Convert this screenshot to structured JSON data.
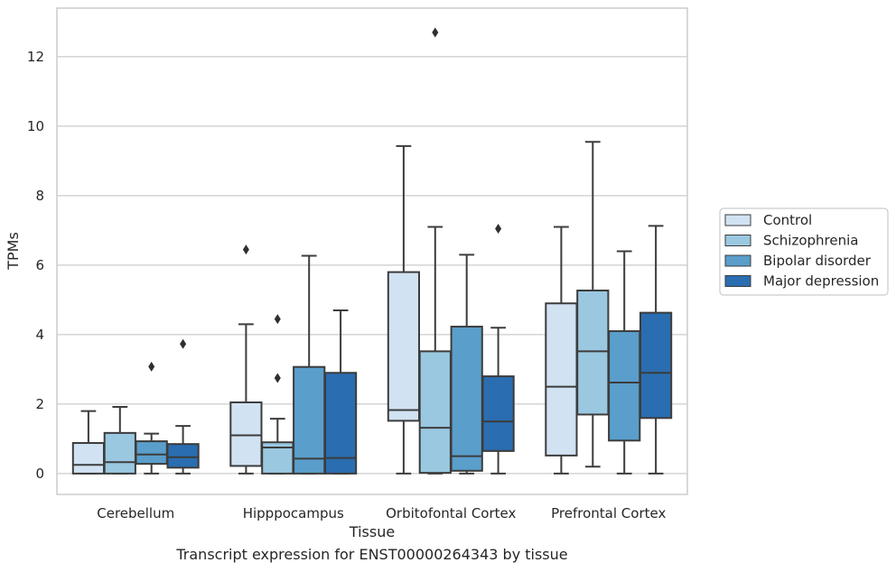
{
  "caption": "Transcript expression for ENST00000264343 by tissue",
  "chart_data": {
    "type": "box",
    "title": "",
    "xlabel": "Tissue",
    "ylabel": "TPMs",
    "ylim": [
      -0.6,
      13.4
    ],
    "yticks": [
      0,
      2,
      4,
      6,
      8,
      10,
      12
    ],
    "grid": true,
    "legend_position": "right, outside plot",
    "categories": [
      "Cerebellum",
      "Hipppocampus",
      "Orbitofontal Cortex",
      "Prefrontal Cortex"
    ],
    "series": [
      {
        "name": "Control",
        "color": "#d1e2f2",
        "boxes": [
          {
            "whisker_low": 0.0,
            "q1": 0.0,
            "median": 0.25,
            "q3": 0.88,
            "whisker_high": 1.8,
            "outliers": []
          },
          {
            "whisker_low": 0.0,
            "q1": 0.22,
            "median": 1.1,
            "q3": 2.05,
            "whisker_high": 4.3,
            "outliers": [
              6.45
            ]
          },
          {
            "whisker_low": 0.0,
            "q1": 1.52,
            "median": 1.83,
            "q3": 5.8,
            "whisker_high": 9.43,
            "outliers": []
          },
          {
            "whisker_low": 0.0,
            "q1": 0.52,
            "median": 2.5,
            "q3": 4.9,
            "whisker_high": 7.1,
            "outliers": []
          }
        ]
      },
      {
        "name": "Schizophrenia",
        "color": "#9ac8e0",
        "boxes": [
          {
            "whisker_low": 0.0,
            "q1": 0.0,
            "median": 0.33,
            "q3": 1.17,
            "whisker_high": 1.92,
            "outliers": []
          },
          {
            "whisker_low": 0.0,
            "q1": 0.0,
            "median": 0.75,
            "q3": 0.9,
            "whisker_high": 1.58,
            "outliers": [
              4.45,
              2.75
            ]
          },
          {
            "whisker_low": 0.0,
            "q1": 0.02,
            "median": 1.32,
            "q3": 3.52,
            "whisker_high": 7.1,
            "outliers": [
              12.7
            ]
          },
          {
            "whisker_low": 0.2,
            "q1": 1.7,
            "median": 3.52,
            "q3": 5.27,
            "whisker_high": 9.55,
            "outliers": []
          }
        ]
      },
      {
        "name": "Bipolar disorder",
        "color": "#5a9ecb",
        "boxes": [
          {
            "whisker_low": 0.0,
            "q1": 0.28,
            "median": 0.55,
            "q3": 0.93,
            "whisker_high": 1.15,
            "outliers": [
              3.08
            ]
          },
          {
            "whisker_low": 0.0,
            "q1": 0.0,
            "median": 0.43,
            "q3": 3.07,
            "whisker_high": 6.27,
            "outliers": []
          },
          {
            "whisker_low": 0.0,
            "q1": 0.08,
            "median": 0.5,
            "q3": 4.23,
            "whisker_high": 6.3,
            "outliers": []
          },
          {
            "whisker_low": 0.0,
            "q1": 0.95,
            "median": 2.62,
            "q3": 4.1,
            "whisker_high": 6.4,
            "outliers": []
          }
        ]
      },
      {
        "name": "Major depression",
        "color": "#2a6db0",
        "boxes": [
          {
            "whisker_low": 0.0,
            "q1": 0.17,
            "median": 0.47,
            "q3": 0.85,
            "whisker_high": 1.37,
            "outliers": [
              3.73
            ]
          },
          {
            "whisker_low": 0.0,
            "q1": 0.0,
            "median": 0.45,
            "q3": 2.9,
            "whisker_high": 4.7,
            "outliers": []
          },
          {
            "whisker_low": 0.0,
            "q1": 0.65,
            "median": 1.5,
            "q3": 2.8,
            "whisker_high": 4.2,
            "outliers": [
              7.05
            ]
          },
          {
            "whisker_low": 0.0,
            "q1": 1.6,
            "median": 2.9,
            "q3": 4.63,
            "whisker_high": 7.13,
            "outliers": []
          }
        ]
      }
    ]
  }
}
